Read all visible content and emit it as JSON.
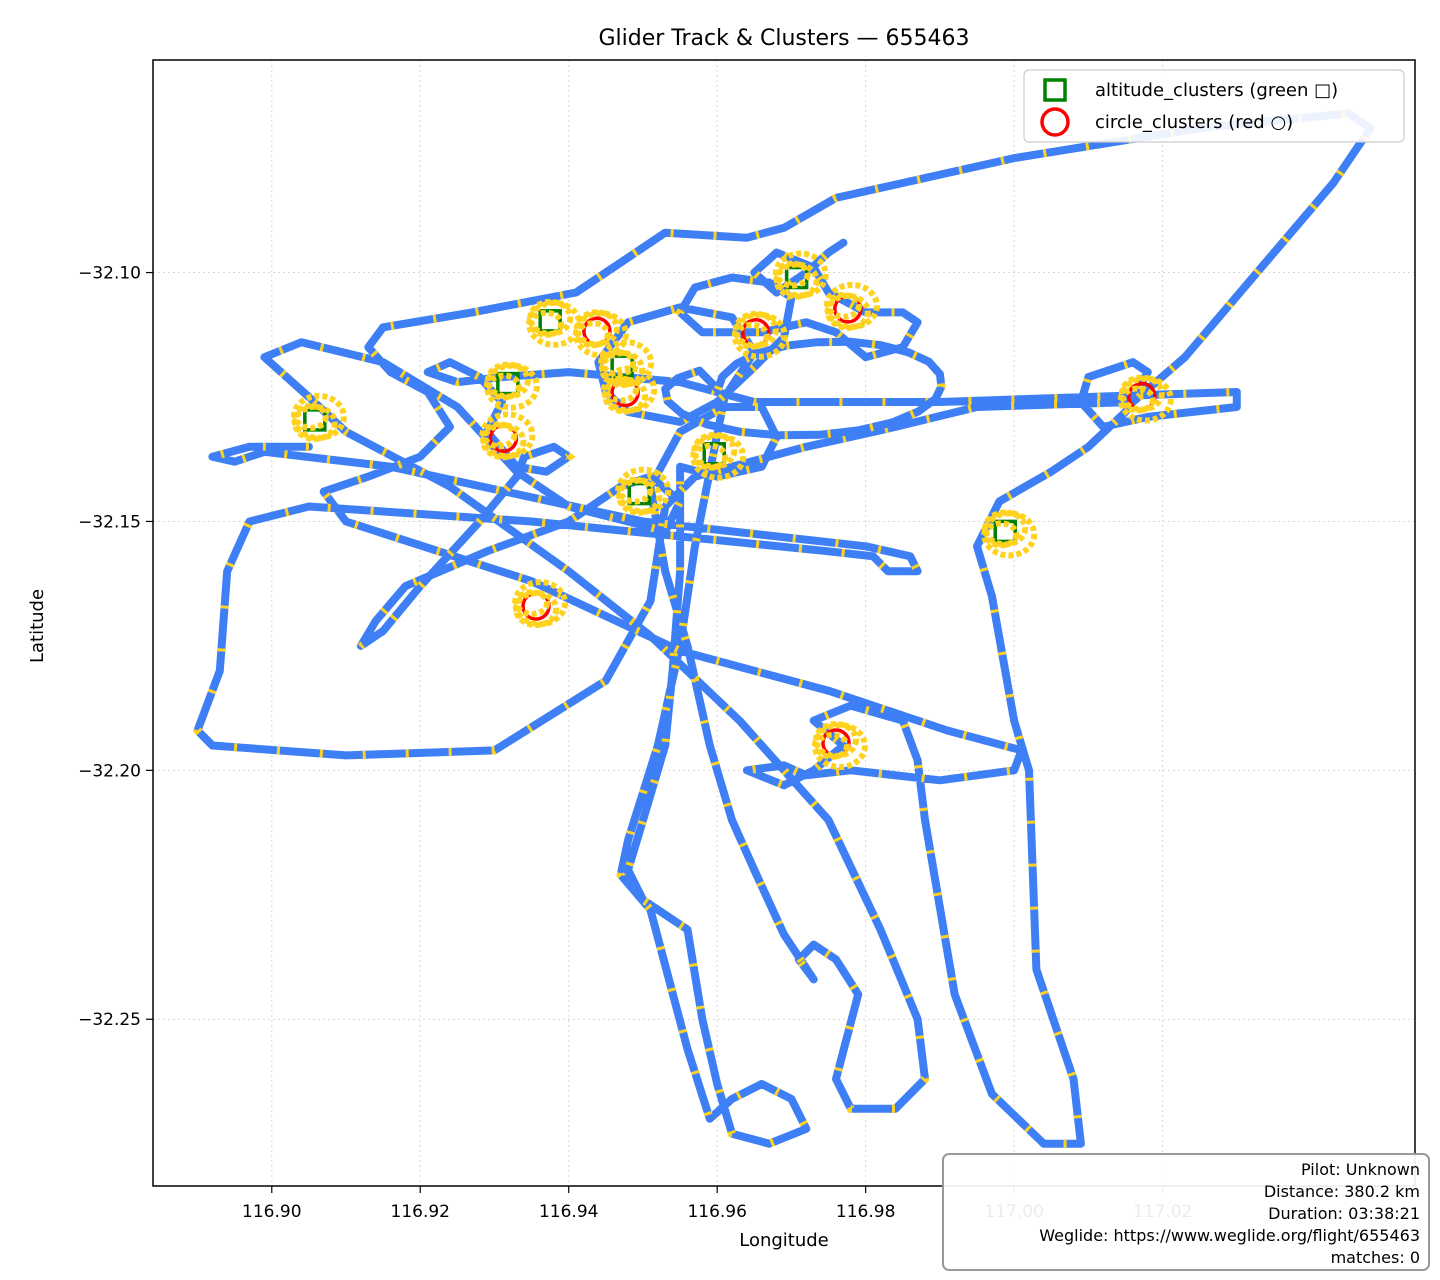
{
  "chart_data": {
    "type": "scatter",
    "title": "Glider Track & Clusters — 655463",
    "xlabel": "Longitude",
    "ylabel": "Latitude",
    "xlim": [
      116.884,
      117.054
    ],
    "ylim": [
      -32.2835,
      -32.0573
    ],
    "x_ticks": [
      116.9,
      116.92,
      116.94,
      116.96,
      116.98,
      117.0,
      117.02
    ],
    "x_tick_labels": [
      "116.90",
      "116.92",
      "116.94",
      "116.96",
      "116.98",
      "117.00",
      "117.02"
    ],
    "y_ticks": [
      -32.1,
      -32.15,
      -32.2,
      -32.25
    ],
    "y_tick_labels": [
      "−32.10",
      "−32.15",
      "−32.20",
      "−32.25"
    ],
    "grid": true,
    "legend_position": "upper right",
    "legend": [
      {
        "label": "altitude_clusters (green □)",
        "marker": "square",
        "color": "#008000"
      },
      {
        "label": "circle_clusters (red ○)",
        "marker": "circle",
        "color": "#ff0000"
      }
    ],
    "track_colors": {
      "track": "#3f7ff5",
      "climb": "#ffd21f"
    },
    "series": [
      {
        "name": "altitude_clusters (green □)",
        "points": [
          [
            116.9058,
            -32.1296
          ],
          [
            116.9375,
            -32.1097
          ],
          [
            116.9472,
            -32.1188
          ],
          [
            116.9318,
            -32.1223
          ],
          [
            116.9495,
            -32.1444
          ],
          [
            116.9596,
            -32.1364
          ],
          [
            116.9707,
            -32.101
          ],
          [
            116.9988,
            -32.152
          ]
        ]
      },
      {
        "name": "circle_clusters (red ○)",
        "points": [
          [
            116.9312,
            -32.1333
          ],
          [
            116.9438,
            -32.1118
          ],
          [
            116.9476,
            -32.1241
          ],
          [
            116.9652,
            -32.1121
          ],
          [
            116.9776,
            -32.1073
          ],
          [
            116.976,
            -32.1945
          ],
          [
            116.9356,
            -32.167
          ],
          [
            117.0172,
            -32.1249
          ]
        ]
      },
      {
        "name": "track",
        "points": [
          [
            116.905,
            -32.135
          ],
          [
            116.897,
            -32.135
          ],
          [
            116.892,
            -32.137
          ],
          [
            116.895,
            -32.138
          ],
          [
            116.899,
            -32.136
          ],
          [
            116.916,
            -32.139
          ],
          [
            116.95,
            -32.15
          ],
          [
            116.98,
            -32.155
          ],
          [
            116.986,
            -32.157
          ],
          [
            116.987,
            -32.16
          ],
          [
            116.983,
            -32.16
          ],
          [
            116.981,
            -32.157
          ],
          [
            116.975,
            -32.156
          ],
          [
            116.935,
            -32.15
          ],
          [
            116.905,
            -32.147
          ],
          [
            116.897,
            -32.15
          ],
          [
            116.894,
            -32.16
          ],
          [
            116.893,
            -32.18
          ],
          [
            116.89,
            -32.192
          ],
          [
            116.892,
            -32.195
          ],
          [
            116.91,
            -32.197
          ],
          [
            116.93,
            -32.196
          ],
          [
            116.945,
            -32.182
          ],
          [
            116.951,
            -32.166
          ],
          [
            116.953,
            -32.147
          ],
          [
            116.957,
            -32.141
          ],
          [
            116.972,
            -32.135
          ],
          [
            116.984,
            -32.131
          ],
          [
            116.995,
            -32.127
          ],
          [
            117.016,
            -32.126
          ],
          [
            117.023,
            -32.117
          ],
          [
            117.043,
            -32.082
          ],
          [
            117.048,
            -32.071
          ],
          [
            117.045,
            -32.068
          ],
          [
            117.025,
            -32.071
          ],
          [
            117.0,
            -32.077
          ],
          [
            116.976,
            -32.085
          ],
          [
            116.969,
            -32.091
          ],
          [
            116.964,
            -32.093
          ],
          [
            116.953,
            -32.092
          ],
          [
            116.944,
            -32.101
          ],
          [
            116.941,
            -32.104
          ],
          [
            116.927,
            -32.108
          ],
          [
            116.915,
            -32.111
          ],
          [
            116.913,
            -32.115
          ],
          [
            116.916,
            -32.12
          ],
          [
            116.921,
            -32.124
          ],
          [
            116.924,
            -32.131
          ],
          [
            116.92,
            -32.137
          ],
          [
            116.913,
            -32.141
          ],
          [
            116.907,
            -32.144
          ],
          [
            116.91,
            -32.15
          ],
          [
            116.935,
            -32.162
          ],
          [
            116.955,
            -32.176
          ],
          [
            116.975,
            -32.184
          ],
          [
            116.991,
            -32.192
          ],
          [
            117.001,
            -32.196
          ],
          [
            117.0,
            -32.2
          ],
          [
            116.99,
            -32.202
          ],
          [
            116.978,
            -32.2
          ],
          [
            116.972,
            -32.201
          ],
          [
            116.969,
            -32.199
          ],
          [
            116.964,
            -32.2
          ],
          [
            116.969,
            -32.203
          ],
          [
            116.973,
            -32.2
          ],
          [
            116.977,
            -32.195
          ],
          [
            116.973,
            -32.19
          ],
          [
            116.978,
            -32.187
          ],
          [
            116.985,
            -32.19
          ],
          [
            116.987,
            -32.198
          ],
          [
            116.988,
            -32.21
          ],
          [
            116.992,
            -32.245
          ],
          [
            116.997,
            -32.265
          ],
          [
            117.004,
            -32.275
          ],
          [
            117.009,
            -32.275
          ],
          [
            117.008,
            -32.262
          ],
          [
            117.003,
            -32.24
          ],
          [
            117.002,
            -32.2
          ],
          [
            117.0,
            -32.19
          ],
          [
            116.997,
            -32.165
          ],
          [
            116.995,
            -32.155
          ],
          [
            116.998,
            -32.146
          ],
          [
            117.005,
            -32.14
          ],
          [
            117.01,
            -32.135
          ],
          [
            117.015,
            -32.128
          ],
          [
            117.018,
            -32.12
          ],
          [
            117.016,
            -32.118
          ],
          [
            117.01,
            -32.121
          ],
          [
            117.009,
            -32.126
          ],
          [
            117.012,
            -32.131
          ],
          [
            117.018,
            -32.129
          ],
          [
            117.03,
            -32.127
          ],
          [
            117.03,
            -32.124
          ],
          [
            116.99,
            -32.126
          ],
          [
            116.965,
            -32.126
          ],
          [
            116.955,
            -32.122
          ],
          [
            116.94,
            -32.12
          ],
          [
            116.931,
            -32.121
          ],
          [
            116.925,
            -32.122
          ],
          [
            116.921,
            -32.12
          ],
          [
            116.924,
            -32.118
          ],
          [
            116.928,
            -32.121
          ],
          [
            116.931,
            -32.126
          ],
          [
            116.929,
            -32.132
          ],
          [
            116.933,
            -32.139
          ],
          [
            116.937,
            -32.14
          ],
          [
            116.94,
            -32.137
          ],
          [
            116.938,
            -32.135
          ],
          [
            116.934,
            -32.137
          ],
          [
            116.933,
            -32.141
          ],
          [
            116.928,
            -32.15
          ],
          [
            116.92,
            -32.163
          ],
          [
            116.915,
            -32.172
          ],
          [
            116.912,
            -32.175
          ],
          [
            116.914,
            -32.17
          ],
          [
            116.918,
            -32.163
          ],
          [
            116.929,
            -32.156
          ],
          [
            116.94,
            -32.15
          ],
          [
            116.947,
            -32.143
          ],
          [
            116.951,
            -32.141
          ],
          [
            116.955,
            -32.146
          ],
          [
            116.953,
            -32.152
          ],
          [
            116.948,
            -32.15
          ],
          [
            116.94,
            -32.147
          ],
          [
            116.933,
            -32.14
          ],
          [
            116.925,
            -32.127
          ],
          [
            116.915,
            -32.118
          ],
          [
            116.904,
            -32.114
          ],
          [
            116.899,
            -32.117
          ],
          [
            116.905,
            -32.125
          ],
          [
            116.91,
            -32.132
          ],
          [
            116.924,
            -32.143
          ],
          [
            116.94,
            -32.16
          ],
          [
            116.951,
            -32.173
          ],
          [
            116.963,
            -32.19
          ],
          [
            116.975,
            -32.21
          ],
          [
            116.982,
            -32.232
          ],
          [
            116.987,
            -32.25
          ],
          [
            116.988,
            -32.262
          ],
          [
            116.984,
            -32.268
          ],
          [
            116.978,
            -32.268
          ],
          [
            116.976,
            -32.262
          ],
          [
            116.979,
            -32.245
          ],
          [
            116.976,
            -32.238
          ],
          [
            116.973,
            -32.235
          ],
          [
            116.971,
            -32.238
          ],
          [
            116.973,
            -32.242
          ],
          [
            116.969,
            -32.233
          ],
          [
            116.965,
            -32.22
          ],
          [
            116.962,
            -32.21
          ],
          [
            116.959,
            -32.195
          ],
          [
            116.956,
            -32.175
          ],
          [
            116.953,
            -32.16
          ],
          [
            116.951,
            -32.143
          ],
          [
            116.955,
            -32.132
          ],
          [
            116.961,
            -32.127
          ],
          [
            116.966,
            -32.127
          ],
          [
            116.968,
            -32.133
          ],
          [
            116.966,
            -32.139
          ],
          [
            116.96,
            -32.141
          ],
          [
            116.955,
            -32.139
          ],
          [
            116.955,
            -32.145
          ],
          [
            116.955,
            -32.16
          ],
          [
            116.954,
            -32.18
          ],
          [
            116.953,
            -32.195
          ],
          [
            116.95,
            -32.21
          ],
          [
            116.948,
            -32.22
          ],
          [
            116.95,
            -32.226
          ],
          [
            116.956,
            -32.232
          ],
          [
            116.958,
            -32.25
          ],
          [
            116.96,
            -32.263
          ],
          [
            116.962,
            -32.273
          ],
          [
            116.967,
            -32.275
          ],
          [
            116.972,
            -32.272
          ],
          [
            116.97,
            -32.266
          ],
          [
            116.966,
            -32.263
          ],
          [
            116.962,
            -32.266
          ],
          [
            116.959,
            -32.27
          ],
          [
            116.956,
            -32.256
          ],
          [
            116.951,
            -32.228
          ],
          [
            116.947,
            -32.221
          ],
          [
            116.948,
            -32.214
          ],
          [
            116.952,
            -32.195
          ],
          [
            116.955,
            -32.175
          ],
          [
            116.957,
            -32.155
          ],
          [
            116.959,
            -32.14
          ],
          [
            116.961,
            -32.125
          ],
          [
            116.965,
            -32.116
          ],
          [
            116.962,
            -32.109
          ],
          [
            116.955,
            -32.107
          ],
          [
            116.948,
            -32.11
          ],
          [
            116.944,
            -32.118
          ],
          [
            116.945,
            -32.124
          ],
          [
            116.948,
            -32.128
          ],
          [
            116.955,
            -32.13
          ],
          [
            116.96,
            -32.126
          ],
          [
            116.965,
            -32.119
          ],
          [
            116.969,
            -32.113
          ],
          [
            116.97,
            -32.105
          ],
          [
            116.967,
            -32.102
          ],
          [
            116.962,
            -32.101
          ],
          [
            116.957,
            -32.103
          ],
          [
            116.955,
            -32.108
          ],
          [
            116.958,
            -32.112
          ],
          [
            116.966,
            -32.112
          ],
          [
            116.972,
            -32.11
          ],
          [
            116.976,
            -32.112
          ],
          [
            116.98,
            -32.117
          ],
          [
            116.985,
            -32.115
          ],
          [
            116.987,
            -32.11
          ],
          [
            116.985,
            -32.108
          ],
          [
            116.98,
            -32.108
          ],
          [
            116.975,
            -32.104
          ],
          [
            116.973,
            -32.099
          ],
          [
            116.968,
            -32.096
          ],
          [
            116.965,
            -32.1
          ],
          [
            116.968,
            -32.104
          ],
          [
            116.972,
            -32.1
          ],
          [
            116.975,
            -32.096
          ],
          [
            116.977,
            -32.094
          ]
        ]
      },
      {
        "name": "loop",
        "points": [
          [
            116.9601,
            -32.1235
          ],
          [
            116.9607,
            -32.1209
          ],
          [
            116.9626,
            -32.1183
          ],
          [
            116.9655,
            -32.1162
          ],
          [
            116.9693,
            -32.1147
          ],
          [
            116.9735,
            -32.114
          ],
          [
            116.9779,
            -32.1139
          ],
          [
            116.9821,
            -32.1146
          ],
          [
            116.9857,
            -32.116
          ],
          [
            116.9885,
            -32.1179
          ],
          [
            116.99,
            -32.1204
          ],
          [
            116.9902,
            -32.1229
          ],
          [
            116.9894,
            -32.1254
          ],
          [
            116.9871,
            -32.1279
          ],
          [
            116.9836,
            -32.1301
          ],
          [
            116.979,
            -32.1317
          ],
          [
            116.9738,
            -32.1326
          ],
          [
            116.9684,
            -32.1327
          ],
          [
            116.9631,
            -32.132
          ],
          [
            116.9586,
            -32.1305
          ],
          [
            116.9552,
            -32.1283
          ],
          [
            116.9533,
            -32.1258
          ],
          [
            116.953,
            -32.1234
          ],
          [
            116.9547,
            -32.1212
          ],
          [
            116.9576,
            -32.1197
          ],
          [
            116.9601,
            -32.1235
          ]
        ]
      }
    ]
  },
  "info": {
    "pilot": "Pilot: Unknown",
    "distance": "Distance: 380.2 km",
    "duration": "Duration: 03:38:21",
    "weglide": "Weglide: https://www.weglide.org/flight/655463",
    "matches": "matches: 0"
  }
}
